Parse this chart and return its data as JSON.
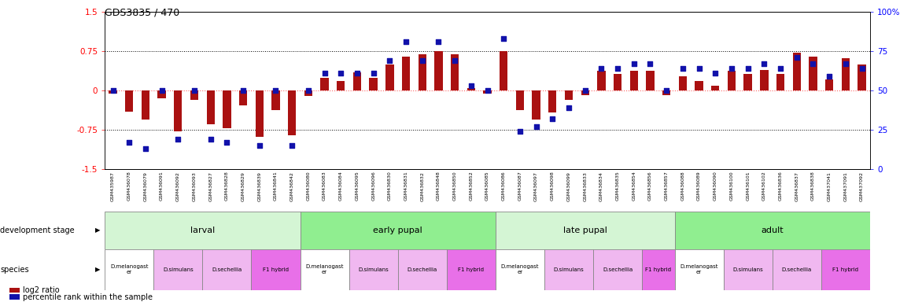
{
  "title": "GDS3835 / 470",
  "samples": [
    "GSM435987",
    "GSM436078",
    "GSM436079",
    "GSM436091",
    "GSM436092",
    "GSM436093",
    "GSM436827",
    "GSM436828",
    "GSM436829",
    "GSM436839",
    "GSM436841",
    "GSM436842",
    "GSM436080",
    "GSM436083",
    "GSM436084",
    "GSM436095",
    "GSM436096",
    "GSM436830",
    "GSM436831",
    "GSM436832",
    "GSM436848",
    "GSM436850",
    "GSM436852",
    "GSM436085",
    "GSM436086",
    "GSM436087",
    "GSM436097",
    "GSM436098",
    "GSM436099",
    "GSM436833",
    "GSM436834",
    "GSM436835",
    "GSM436854",
    "GSM436856",
    "GSM436857",
    "GSM436088",
    "GSM436089",
    "GSM436090",
    "GSM436100",
    "GSM436101",
    "GSM436102",
    "GSM436836",
    "GSM436837",
    "GSM436838",
    "GSM437041",
    "GSM437091",
    "GSM437092"
  ],
  "log2_ratio": [
    -0.05,
    -0.4,
    -0.55,
    -0.15,
    -0.78,
    -0.18,
    -0.65,
    -0.72,
    -0.28,
    -0.88,
    -0.38,
    -0.85,
    -0.1,
    0.25,
    0.18,
    0.35,
    0.25,
    0.5,
    0.65,
    0.7,
    0.75,
    0.7,
    0.05,
    -0.05,
    0.75,
    -0.38,
    -0.55,
    -0.42,
    -0.18,
    -0.08,
    0.38,
    0.32,
    0.38,
    0.38,
    -0.08,
    0.28,
    0.18,
    0.1,
    0.38,
    0.32,
    0.4,
    0.32,
    0.72,
    0.65,
    0.22,
    0.62,
    0.5
  ],
  "percentile": [
    50,
    17,
    13,
    50,
    19,
    50,
    19,
    17,
    50,
    15,
    50,
    15,
    50,
    61,
    61,
    61,
    61,
    69,
    81,
    69,
    81,
    69,
    53,
    50,
    83,
    24,
    27,
    32,
    39,
    50,
    64,
    64,
    67,
    67,
    50,
    64,
    64,
    61,
    64,
    64,
    67,
    64,
    71,
    67,
    59,
    67,
    64
  ],
  "dev_stages": [
    {
      "label": "larval",
      "start": 0,
      "end": 11,
      "color": "#d4f5d4"
    },
    {
      "label": "early pupal",
      "start": 12,
      "end": 23,
      "color": "#90ee90"
    },
    {
      "label": "late pupal",
      "start": 24,
      "end": 34,
      "color": "#d4f5d4"
    },
    {
      "label": "adult",
      "start": 35,
      "end": 46,
      "color": "#90ee90"
    }
  ],
  "species_groups": [
    {
      "label": "D.melanogast\ner",
      "start": 0,
      "end": 2,
      "color": "#ffffff"
    },
    {
      "label": "D.simulans",
      "start": 3,
      "end": 5,
      "color": "#f0b8f0"
    },
    {
      "label": "D.sechellia",
      "start": 6,
      "end": 8,
      "color": "#f0b8f0"
    },
    {
      "label": "F1 hybrid",
      "start": 9,
      "end": 11,
      "color": "#e870e8"
    },
    {
      "label": "D.melanogast\ner",
      "start": 12,
      "end": 14,
      "color": "#ffffff"
    },
    {
      "label": "D.simulans",
      "start": 15,
      "end": 17,
      "color": "#f0b8f0"
    },
    {
      "label": "D.sechellia",
      "start": 18,
      "end": 20,
      "color": "#f0b8f0"
    },
    {
      "label": "F1 hybrid",
      "start": 21,
      "end": 23,
      "color": "#e870e8"
    },
    {
      "label": "D.melanogast\ner",
      "start": 24,
      "end": 26,
      "color": "#ffffff"
    },
    {
      "label": "D.simulans",
      "start": 27,
      "end": 29,
      "color": "#f0b8f0"
    },
    {
      "label": "D.sechellia",
      "start": 30,
      "end": 32,
      "color": "#f0b8f0"
    },
    {
      "label": "F1 hybrid",
      "start": 33,
      "end": 34,
      "color": "#e870e8"
    },
    {
      "label": "D.melanogast\ner",
      "start": 35,
      "end": 37,
      "color": "#ffffff"
    },
    {
      "label": "D.simulans",
      "start": 38,
      "end": 40,
      "color": "#f0b8f0"
    },
    {
      "label": "D.sechellia",
      "start": 41,
      "end": 43,
      "color": "#f0b8f0"
    },
    {
      "label": "F1 hybrid",
      "start": 44,
      "end": 46,
      "color": "#e870e8"
    }
  ],
  "ylim_left": [
    -1.5,
    1.5
  ],
  "ylim_right": [
    0,
    100
  ],
  "yticks_left": [
    -1.5,
    -0.75,
    0,
    0.75,
    1.5
  ],
  "yticks_right": [
    0,
    25,
    50,
    75,
    100
  ],
  "bar_color": "#aa1111",
  "dot_color": "#1111aa",
  "ref_line_color": "#ff6666",
  "background_color": "#ffffff",
  "fig_width": 11.58,
  "fig_height": 3.84,
  "dpi": 100
}
